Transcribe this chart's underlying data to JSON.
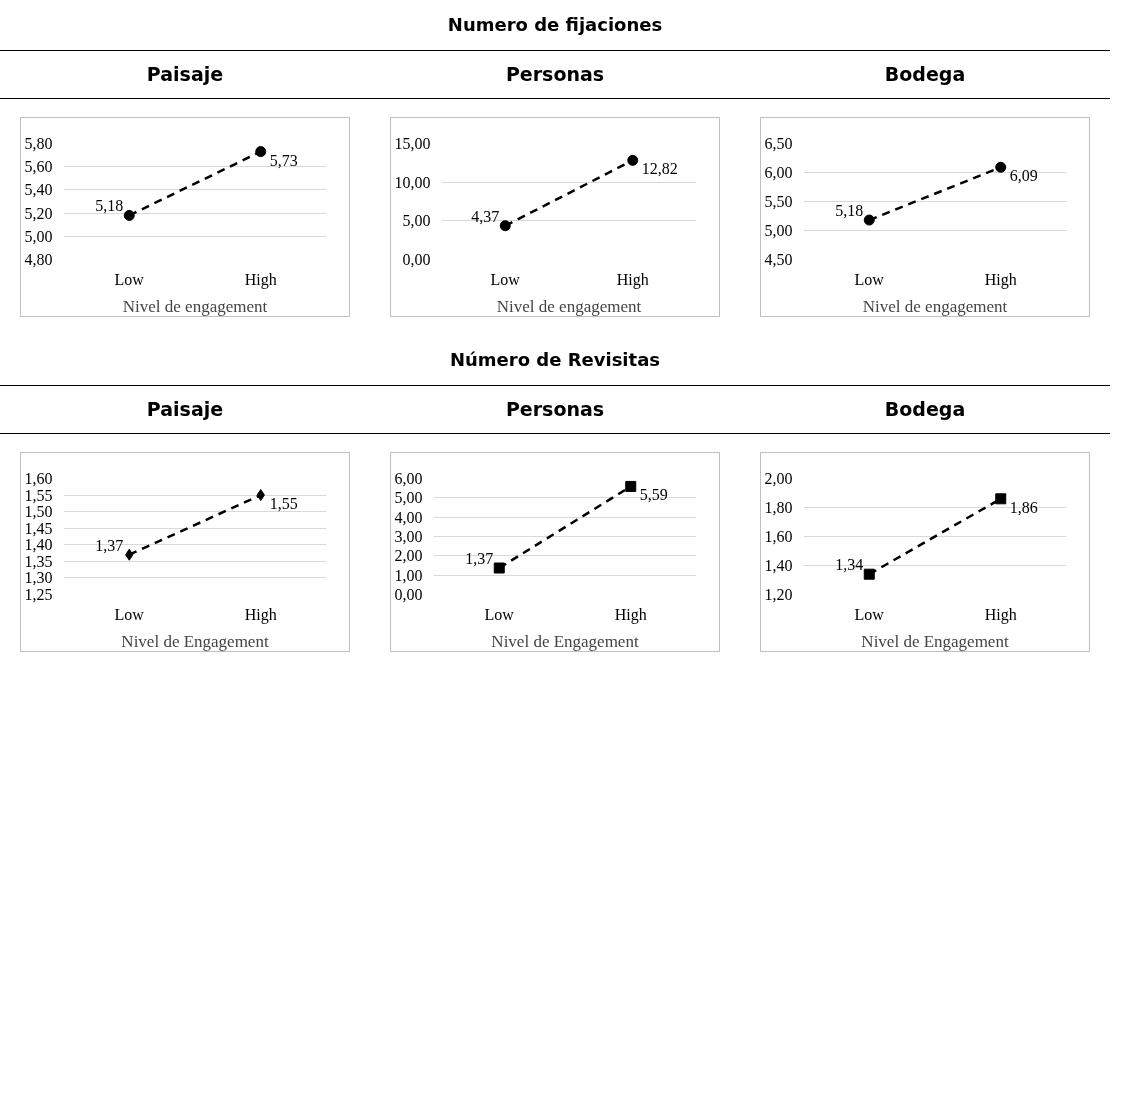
{
  "chart_data": [
    {
      "type": "line",
      "title": "Paisaje",
      "categories": [
        "Low",
        "High"
      ],
      "xlabel": "Nivel de engagement",
      "marker": "circle",
      "line_style": "dashed",
      "grid": "y",
      "ylim": [
        4.8,
        5.8
      ],
      "yticks": [
        {
          "value": 4.8,
          "label": "4,80"
        },
        {
          "value": 5.0,
          "label": "5,00"
        },
        {
          "value": 5.2,
          "label": "5,20"
        },
        {
          "value": 5.4,
          "label": "5,40"
        },
        {
          "value": 5.6,
          "label": "5,60"
        },
        {
          "value": 5.8,
          "label": "5,80"
        }
      ],
      "series": [
        {
          "color": "#000000",
          "values": [
            5.18,
            5.73
          ],
          "value_labels": [
            "5,18",
            "5,73"
          ]
        }
      ]
    },
    {
      "type": "line",
      "subtitle": "Numero de fijaciones",
      "title": "Personas",
      "categories": [
        "Low",
        "High"
      ],
      "xlabel": "Nivel de engagement",
      "marker": "circle",
      "line_style": "dashed",
      "grid": "y",
      "ylim": [
        0,
        15
      ],
      "yticks": [
        {
          "value": 0,
          "label": "0,00"
        },
        {
          "value": 5,
          "label": "5,00"
        },
        {
          "value": 10,
          "label": "10,00"
        },
        {
          "value": 15,
          "label": "15,00"
        }
      ],
      "series": [
        {
          "color": "#000000",
          "values": [
            4.37,
            12.82
          ],
          "value_labels": [
            "4,37",
            "12,82"
          ]
        }
      ]
    },
    {
      "type": "line",
      "title": "Bodega",
      "categories": [
        "Low",
        "High"
      ],
      "xlabel": "Nivel de engagement",
      "marker": "circle",
      "line_style": "dashed",
      "grid": "y",
      "ylim": [
        4.5,
        6.5
      ],
      "yticks": [
        {
          "value": 4.5,
          "label": "4,50"
        },
        {
          "value": 5.0,
          "label": "5,00"
        },
        {
          "value": 5.5,
          "label": "5,50"
        },
        {
          "value": 6.0,
          "label": "6,00"
        },
        {
          "value": 6.5,
          "label": "6,50"
        }
      ],
      "series": [
        {
          "color": "#000000",
          "values": [
            5.18,
            6.09
          ],
          "value_labels": [
            "5,18",
            "6,09"
          ]
        }
      ]
    },
    {
      "type": "line",
      "title": "Paisaje",
      "categories": [
        "Low",
        "High"
      ],
      "xlabel": "Nivel de Engagement",
      "marker": "diamond",
      "line_style": "dashed",
      "grid": "y",
      "ylim": [
        1.25,
        1.6
      ],
      "yticks": [
        {
          "value": 1.25,
          "label": "1,25"
        },
        {
          "value": 1.3,
          "label": "1,30"
        },
        {
          "value": 1.35,
          "label": "1,35"
        },
        {
          "value": 1.4,
          "label": "1,40"
        },
        {
          "value": 1.45,
          "label": "1,45"
        },
        {
          "value": 1.5,
          "label": "1,50"
        },
        {
          "value": 1.55,
          "label": "1,55"
        },
        {
          "value": 1.6,
          "label": "1,60"
        }
      ],
      "series": [
        {
          "color": "#000000",
          "values": [
            1.37,
            1.55
          ],
          "value_labels": [
            "1,37",
            "1,55"
          ]
        }
      ]
    },
    {
      "type": "line",
      "subtitle": "Número de Revisitas",
      "title": "Personas",
      "categories": [
        "Low",
        "High"
      ],
      "xlabel": "Nivel de Engagement",
      "marker": "square",
      "line_style": "dashed",
      "grid": "y",
      "ylim": [
        0,
        6
      ],
      "yticks": [
        {
          "value": 0,
          "label": "0,00"
        },
        {
          "value": 1,
          "label": "1,00"
        },
        {
          "value": 2,
          "label": "2,00"
        },
        {
          "value": 3,
          "label": "3,00"
        },
        {
          "value": 4,
          "label": "4,00"
        },
        {
          "value": 5,
          "label": "5,00"
        },
        {
          "value": 6,
          "label": "6,00"
        }
      ],
      "series": [
        {
          "color": "#000000",
          "values": [
            1.37,
            5.59
          ],
          "value_labels": [
            "1,37",
            "5,59"
          ]
        }
      ]
    },
    {
      "type": "line",
      "title": "Bodega",
      "categories": [
        "Low",
        "High"
      ],
      "xlabel": "Nivel de Engagement",
      "marker": "square",
      "line_style": "dashed",
      "grid": "y",
      "ylim": [
        1.2,
        2.0
      ],
      "yticks": [
        {
          "value": 1.2,
          "label": "1,20"
        },
        {
          "value": 1.4,
          "label": "1,40"
        },
        {
          "value": 1.6,
          "label": "1,60"
        },
        {
          "value": 1.8,
          "label": "1,80"
        },
        {
          "value": 2.0,
          "label": "2,00"
        }
      ],
      "series": [
        {
          "color": "#000000",
          "values": [
            1.34,
            1.86
          ],
          "value_labels": [
            "1,34",
            "1,86"
          ]
        }
      ]
    }
  ]
}
